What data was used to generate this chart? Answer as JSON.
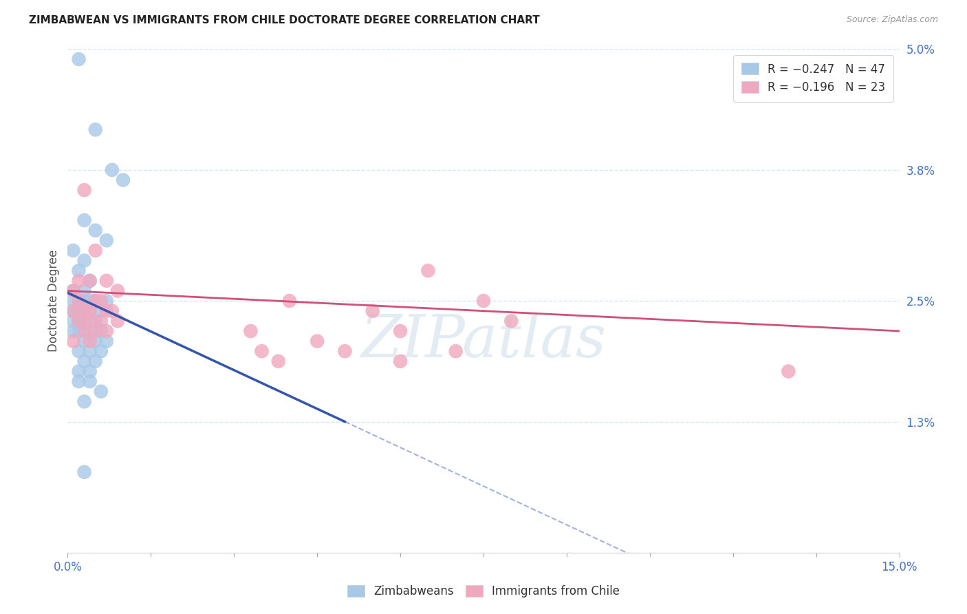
{
  "title": "ZIMBABWEAN VS IMMIGRANTS FROM CHILE DOCTORATE DEGREE CORRELATION CHART",
  "source": "Source: ZipAtlas.com",
  "ylabel": "Doctorate Degree",
  "xlim": [
    0.0,
    0.15
  ],
  "ylim": [
    0.0,
    0.05
  ],
  "xticklabels": [
    "0.0%",
    "15.0%"
  ],
  "yticks_right": [
    0.013,
    0.025,
    0.038,
    0.05
  ],
  "yticks_right_labels": [
    "1.3%",
    "2.5%",
    "3.8%",
    "5.0%"
  ],
  "grid_color": "#d4e8f5",
  "background_color": "#ffffff",
  "watermark": "ZIPatlas",
  "watermark_color": "#ccdde8",
  "zim_color": "#a8c8e8",
  "chile_color": "#f0a8be",
  "zim_line_color": "#3355aa",
  "chile_line_color": "#d05078",
  "zim_scatter": [
    [
      0.002,
      0.049
    ],
    [
      0.005,
      0.042
    ],
    [
      0.008,
      0.038
    ],
    [
      0.01,
      0.037
    ],
    [
      0.003,
      0.033
    ],
    [
      0.005,
      0.032
    ],
    [
      0.007,
      0.031
    ],
    [
      0.001,
      0.03
    ],
    [
      0.003,
      0.029
    ],
    [
      0.002,
      0.028
    ],
    [
      0.004,
      0.027
    ],
    [
      0.001,
      0.026
    ],
    [
      0.003,
      0.026
    ],
    [
      0.005,
      0.025
    ],
    [
      0.007,
      0.025
    ],
    [
      0.001,
      0.025
    ],
    [
      0.002,
      0.025
    ],
    [
      0.003,
      0.025
    ],
    [
      0.004,
      0.025
    ],
    [
      0.001,
      0.024
    ],
    [
      0.002,
      0.024
    ],
    [
      0.003,
      0.024
    ],
    [
      0.004,
      0.024
    ],
    [
      0.006,
      0.024
    ],
    [
      0.001,
      0.023
    ],
    [
      0.002,
      0.023
    ],
    [
      0.003,
      0.023
    ],
    [
      0.005,
      0.023
    ],
    [
      0.001,
      0.022
    ],
    [
      0.002,
      0.022
    ],
    [
      0.004,
      0.022
    ],
    [
      0.006,
      0.022
    ],
    [
      0.003,
      0.021
    ],
    [
      0.005,
      0.021
    ],
    [
      0.007,
      0.021
    ],
    [
      0.002,
      0.02
    ],
    [
      0.004,
      0.02
    ],
    [
      0.006,
      0.02
    ],
    [
      0.003,
      0.019
    ],
    [
      0.005,
      0.019
    ],
    [
      0.002,
      0.018
    ],
    [
      0.004,
      0.018
    ],
    [
      0.002,
      0.017
    ],
    [
      0.004,
      0.017
    ],
    [
      0.003,
      0.015
    ],
    [
      0.006,
      0.016
    ],
    [
      0.003,
      0.008
    ]
  ],
  "chile_scatter": [
    [
      0.003,
      0.036
    ],
    [
      0.005,
      0.03
    ],
    [
      0.002,
      0.027
    ],
    [
      0.004,
      0.027
    ],
    [
      0.007,
      0.027
    ],
    [
      0.001,
      0.026
    ],
    [
      0.006,
      0.025
    ],
    [
      0.002,
      0.025
    ],
    [
      0.005,
      0.025
    ],
    [
      0.009,
      0.026
    ],
    [
      0.003,
      0.024
    ],
    [
      0.007,
      0.024
    ],
    [
      0.001,
      0.024
    ],
    [
      0.004,
      0.024
    ],
    [
      0.008,
      0.024
    ],
    [
      0.002,
      0.023
    ],
    [
      0.006,
      0.023
    ],
    [
      0.004,
      0.023
    ],
    [
      0.009,
      0.023
    ],
    [
      0.003,
      0.022
    ],
    [
      0.005,
      0.022
    ],
    [
      0.007,
      0.022
    ],
    [
      0.001,
      0.021
    ],
    [
      0.004,
      0.021
    ],
    [
      0.065,
      0.028
    ],
    [
      0.075,
      0.025
    ],
    [
      0.04,
      0.025
    ],
    [
      0.055,
      0.024
    ],
    [
      0.08,
      0.023
    ],
    [
      0.033,
      0.022
    ],
    [
      0.06,
      0.022
    ],
    [
      0.045,
      0.021
    ],
    [
      0.035,
      0.02
    ],
    [
      0.05,
      0.02
    ],
    [
      0.07,
      0.02
    ],
    [
      0.038,
      0.019
    ],
    [
      0.06,
      0.019
    ],
    [
      0.13,
      0.018
    ]
  ],
  "zim_line_x0": 0.0,
  "zim_line_y0": 0.0258,
  "zim_line_x1": 0.05,
  "zim_line_y1": 0.013,
  "zim_line_x_dash_end": 0.15,
  "chile_line_x0": 0.0,
  "chile_line_y0": 0.026,
  "chile_line_x1": 0.15,
  "chile_line_y1": 0.022
}
